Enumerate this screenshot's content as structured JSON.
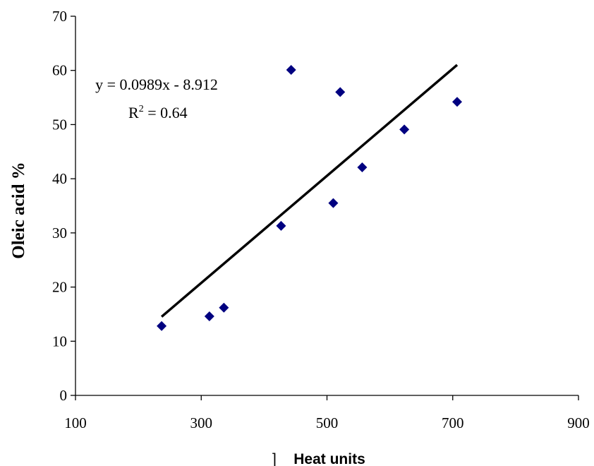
{
  "chart_data": {
    "type": "scatter",
    "xlabel": "Heat units",
    "xlabel_prefix": "]",
    "ylabel": "Oleic acid %",
    "xlim": [
      100,
      900
    ],
    "ylim": [
      0,
      70
    ],
    "xticks": [
      100,
      300,
      500,
      700,
      900
    ],
    "yticks": [
      0,
      10,
      20,
      30,
      40,
      50,
      60,
      70
    ],
    "grid": false,
    "legend": "none",
    "marker_color": "#000080",
    "trendline_color": "#000000",
    "points": [
      {
        "x": 237,
        "y": 12.8
      },
      {
        "x": 313,
        "y": 14.6
      },
      {
        "x": 336,
        "y": 16.2
      },
      {
        "x": 427,
        "y": 31.3
      },
      {
        "x": 443,
        "y": 60.1
      },
      {
        "x": 510,
        "y": 35.5
      },
      {
        "x": 521,
        "y": 56.0
      },
      {
        "x": 556,
        "y": 42.1
      },
      {
        "x": 623,
        "y": 49.1
      },
      {
        "x": 707,
        "y": 54.2
      }
    ],
    "trendline": {
      "slope": 0.0989,
      "intercept": -8.912,
      "x_range": [
        237,
        707
      ],
      "equation": "y = 0.0989x - 8.912",
      "r2_prefix": "R",
      "r2_sup": "2",
      "r2_value": " = 0.64"
    }
  }
}
